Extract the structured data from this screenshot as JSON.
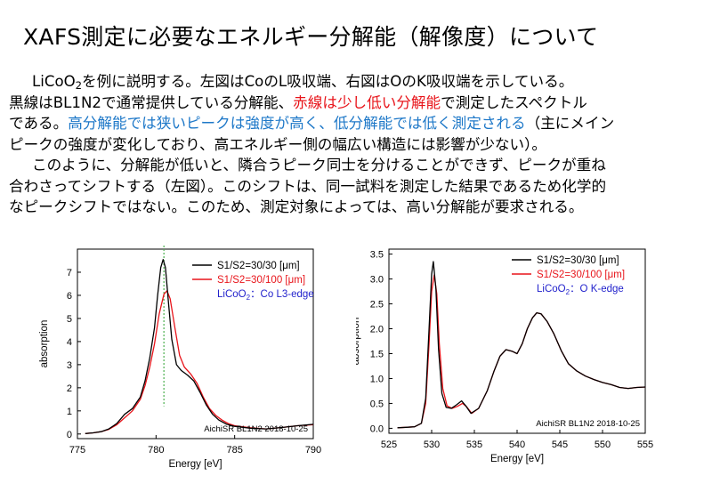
{
  "title": "XAFS測定に必要なエネルギー分解能（解像度）について",
  "paragraph1": {
    "s1_pre": "LiCoO",
    "s1_sub": "2",
    "s1_post": "を例に説明する。左図はCoのL吸収端、右図はOのK吸収端を示している。",
    "s2_pre": "黒線はBL1N2で通常提供している分解能、",
    "s2_red": "赤線は少し低い分解能",
    "s2_post": "で測定したスペクトル",
    "s3_pre": "である。",
    "s3_blue": "高分解能では狭いピークは強度が高く、低分解能では低く測定される",
    "s3_post": "（主にメイン",
    "s4": "ピークの強度が変化しており、高エネルギー側の幅広い構造には影響が少ない）。"
  },
  "paragraph2": {
    "line1": "このように、分解能が低いと、隣合うピーク同士を分けることができず、ピークが重ね",
    "line2": "合わさってシフトする（左図）。このシフトは、同一試料を測定した結果であるため化学的",
    "line3": "なピークシフトではない。このため、測定対象によっては、高い分解能が要求される。"
  },
  "chart_data": [
    {
      "type": "line",
      "xlabel": "Energy [eV]",
      "ylabel": "absorption",
      "xlim": [
        775,
        790
      ],
      "ylim": [
        -0.2,
        8.0
      ],
      "xticks": [
        775,
        780,
        785,
        790
      ],
      "yticks": [
        0,
        1,
        2,
        3,
        4,
        5,
        6,
        7
      ],
      "legend": [
        "S1/S2=30/30 [μm]",
        "S1/S2=30/100 [μm]"
      ],
      "sample_label_pre": "LiCoO",
      "sample_label_sub": "2",
      "sample_label_post": "：Co L3-edge",
      "footer": "AichiSR BL1N2 2018-10-25",
      "marker_x": 780.5,
      "colors": {
        "high_res": "#000000",
        "low_res": "#e8141a",
        "label": "#2222cc",
        "marker": "#4caf50"
      },
      "series": [
        {
          "name": "S1/S2=30/30 [μm]",
          "x": [
            775.5,
            776,
            776.5,
            777,
            777.5,
            778,
            778.5,
            779,
            779.3,
            779.6,
            779.9,
            780.1,
            780.3,
            780.45,
            780.6,
            780.8,
            781,
            781.3,
            781.6,
            782,
            782.4,
            782.8,
            783.2,
            783.6,
            784,
            784.5,
            785,
            786,
            787,
            788,
            789,
            790
          ],
          "y": [
            0.02,
            0.05,
            0.1,
            0.22,
            0.45,
            0.85,
            1.1,
            1.6,
            2.3,
            3.3,
            4.6,
            6.0,
            7.2,
            7.55,
            7.2,
            5.6,
            4.1,
            3.0,
            2.75,
            2.55,
            2.3,
            1.8,
            1.25,
            0.85,
            0.6,
            0.42,
            0.33,
            0.25,
            0.22,
            0.28,
            0.36,
            0.42
          ]
        },
        {
          "name": "S1/S2=30/100 [μm]",
          "x": [
            775.5,
            776,
            776.5,
            777,
            777.5,
            778,
            778.5,
            779,
            779.3,
            779.6,
            779.9,
            780.2,
            780.5,
            780.7,
            780.9,
            781.2,
            781.5,
            781.8,
            782.2,
            782.6,
            783,
            783.4,
            783.8,
            784.2,
            784.6,
            785,
            786,
            787,
            788,
            789,
            790
          ],
          "y": [
            0.02,
            0.05,
            0.1,
            0.2,
            0.4,
            0.7,
            1.0,
            1.5,
            2.1,
            2.9,
            3.9,
            5.2,
            6.05,
            6.2,
            5.85,
            4.6,
            3.4,
            2.9,
            2.6,
            2.2,
            1.6,
            1.1,
            0.8,
            0.6,
            0.45,
            0.36,
            0.27,
            0.22,
            0.28,
            0.36,
            0.4
          ]
        }
      ]
    },
    {
      "type": "line",
      "xlabel": "Energy [eV]",
      "ylabel": "absorption",
      "xlim": [
        525,
        555
      ],
      "ylim": [
        -0.1,
        3.6
      ],
      "xticks": [
        525,
        530,
        535,
        540,
        545,
        550,
        555
      ],
      "yticks": [
        0.0,
        0.5,
        1.0,
        1.5,
        2.0,
        2.5,
        3.0,
        3.5
      ],
      "legend": [
        "S1/S2=30/30 [μm]",
        "S1/S2=30/100 [μm]"
      ],
      "sample_label_pre": "LiCoO",
      "sample_label_sub": "2",
      "sample_label_post": "：O K-edge",
      "footer": "AichiSR BL1N2 2018-10-25",
      "colors": {
        "high_res": "#000000",
        "low_res": "#e8141a",
        "label": "#2222cc"
      },
      "series": [
        {
          "name": "S1/S2=30/30 [μm]",
          "x": [
            526,
            527,
            528,
            528.8,
            529.3,
            529.7,
            530.0,
            530.2,
            530.5,
            530.8,
            531.2,
            531.7,
            532.3,
            532.9,
            533.5,
            534,
            534.6,
            535.5,
            536.5,
            537.3,
            538,
            538.7,
            539.4,
            540,
            540.6,
            541.2,
            541.8,
            542.3,
            542.8,
            543.5,
            544.3,
            545.2,
            546,
            547,
            548,
            549,
            550,
            551,
            552,
            553,
            554,
            555
          ],
          "y": [
            0.01,
            0.02,
            0.03,
            0.1,
            0.6,
            2.0,
            3.1,
            3.35,
            2.8,
            1.6,
            0.7,
            0.42,
            0.4,
            0.47,
            0.55,
            0.45,
            0.3,
            0.4,
            0.75,
            1.15,
            1.45,
            1.58,
            1.55,
            1.5,
            1.7,
            2.0,
            2.22,
            2.32,
            2.3,
            2.15,
            1.9,
            1.55,
            1.3,
            1.15,
            1.05,
            0.98,
            0.92,
            0.88,
            0.82,
            0.8,
            0.82,
            0.83
          ]
        },
        {
          "name": "S1/S2=30/100 [μm]",
          "x": [
            526,
            527,
            528,
            528.8,
            529.3,
            529.7,
            530.0,
            530.3,
            530.6,
            530.9,
            531.3,
            531.8,
            532.4,
            533,
            533.6,
            534.1,
            534.7,
            535.5,
            536.5,
            537.3,
            538,
            538.7,
            539.4,
            540,
            540.6,
            541.2,
            541.8,
            542.3,
            542.8,
            543.5,
            544.3,
            545.2,
            546,
            547,
            548,
            549,
            550,
            551,
            552,
            553,
            554,
            555
          ],
          "y": [
            0.01,
            0.02,
            0.03,
            0.1,
            0.5,
            1.7,
            2.75,
            3.08,
            2.7,
            1.7,
            0.8,
            0.45,
            0.4,
            0.44,
            0.5,
            0.43,
            0.3,
            0.4,
            0.75,
            1.15,
            1.45,
            1.58,
            1.55,
            1.5,
            1.7,
            2.0,
            2.22,
            2.32,
            2.3,
            2.15,
            1.9,
            1.55,
            1.3,
            1.15,
            1.05,
            0.98,
            0.92,
            0.88,
            0.82,
            0.8,
            0.82,
            0.83
          ]
        }
      ]
    }
  ]
}
